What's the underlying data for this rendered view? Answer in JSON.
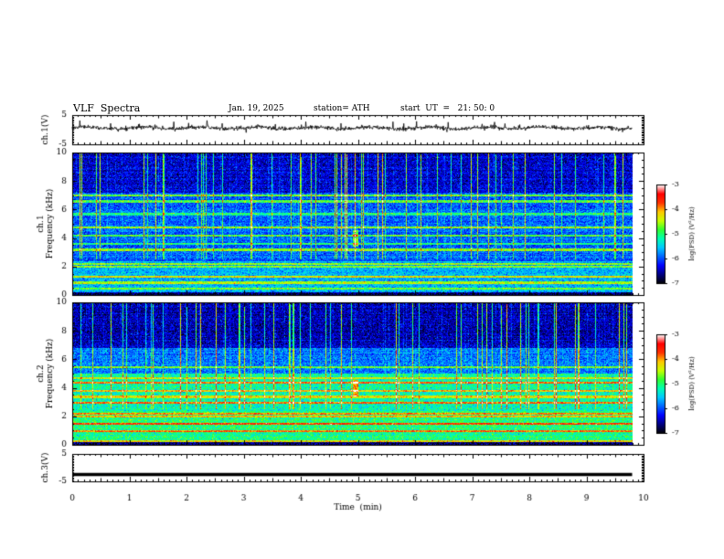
{
  "header": {
    "title": "VLF  Spectra",
    "date": "Jan. 19, 2025",
    "station": "station= ATH",
    "start": "start  UT  =   21: 50: 0"
  },
  "chart_data": [
    {
      "type": "line",
      "ylabel": "ch.1(V)",
      "ylim": [
        -5,
        5
      ],
      "yticks": [
        "5",
        "-5"
      ],
      "xlim": [
        0,
        10
      ],
      "description_level": 0.6
    },
    {
      "type": "heatmap",
      "ylabel": "ch.1\nFrequency (kHz)",
      "ylim": [
        0,
        10
      ],
      "yticks": [
        "0",
        "2",
        "4",
        "6",
        "8",
        "10"
      ],
      "xlim": [
        0,
        10
      ],
      "data_end_min": 9.8,
      "colorbar": {
        "label": "log(PSD) (V²/Hz)",
        "ticks": [
          "-3",
          "-4",
          "-5",
          "-6",
          "-7"
        ],
        "range": [
          -7,
          -3
        ]
      },
      "bands_khz": [
        0.5,
        0.9,
        1.3,
        2.0,
        2.2,
        3.2,
        3.6,
        4.2,
        4.8,
        5.7,
        6.6,
        7.0
      ],
      "burst_min": 4.95
    },
    {
      "type": "heatmap",
      "ylabel": "ch.2\nFrequency (kHz)",
      "ylim": [
        0,
        10
      ],
      "yticks": [
        "0",
        "2",
        "4",
        "6",
        "8",
        "10"
      ],
      "xlim": [
        0,
        10
      ],
      "data_end_min": 9.8,
      "colorbar": {
        "label": "log(PSD) (V²/Hz)",
        "ticks": [
          "-3",
          "-4",
          "-5",
          "-6",
          "-7"
        ],
        "range": [
          -7,
          -3
        ]
      },
      "bands_khz": [
        0.3,
        1.0,
        1.5,
        2.0,
        2.2,
        3.0,
        3.4,
        3.8,
        4.4,
        4.7,
        5.5
      ],
      "burst_min": 4.95
    },
    {
      "type": "line",
      "ylabel": "ch.3(V)",
      "ylim": [
        -5,
        5
      ],
      "yticks": [
        "5",
        "-5"
      ],
      "xlim": [
        0,
        10
      ],
      "constant_value": -2.5,
      "xlabel": "Time  (min)",
      "xticks": [
        "0",
        "1",
        "2",
        "3",
        "4",
        "5",
        "6",
        "7",
        "8",
        "9",
        "10"
      ]
    }
  ],
  "colors": {
    "cmap": [
      "#000000",
      "#00007f",
      "#0000ff",
      "#0064ff",
      "#00c8ff",
      "#00ffb4",
      "#32ff32",
      "#c8ff00",
      "#ffc800",
      "#ff3200",
      "#ff0000",
      "#ffffff"
    ]
  }
}
